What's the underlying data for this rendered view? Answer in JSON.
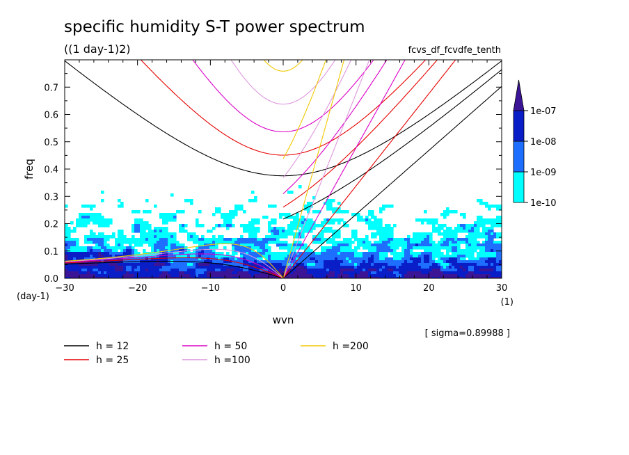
{
  "header": {
    "title": "specific humidity S-T power spectrum",
    "units": "((1 day-1)2)",
    "run_id": "fcvs_df_fcvdfe_tenth"
  },
  "axes": {
    "xlabel": "wvn",
    "ylabel": "freq",
    "x_unit": "(1)",
    "y_unit": "(day-1)"
  },
  "sigma_label": "[ sigma=0.89988 ]",
  "colorbar": {
    "levels": [
      "1e-10",
      "1e-09",
      "1e-08",
      "1e-07"
    ],
    "colors": [
      "#00ffff",
      "#1e6eff",
      "#0a1ec8",
      "#3c1496"
    ]
  },
  "legend": [
    {
      "label": "h = 12",
      "color": "#000000"
    },
    {
      "label": "h = 25",
      "color": "#e60000"
    },
    {
      "label": "h = 50",
      "color": "#dc00c8"
    },
    {
      "label": "h =100",
      "color": "#dc96dc"
    },
    {
      "label": "h =200",
      "color": "#f0c800"
    }
  ],
  "chart_data": {
    "type": "heatmap",
    "title": "specific humidity S-T power spectrum",
    "subtitle": "((1 day-1)2)",
    "xlabel": "wvn",
    "ylabel": "freq",
    "xlim": [
      -30,
      30
    ],
    "ylim": [
      0,
      0.8
    ],
    "x_ticks": [
      -30,
      -20,
      -10,
      0,
      10,
      20,
      30
    ],
    "y_ticks": [
      0.0,
      0.1,
      0.2,
      0.3,
      0.4,
      0.5,
      0.6,
      0.7
    ],
    "contour_levels": [
      "1e-10",
      "1e-09",
      "1e-08",
      "1e-07"
    ],
    "dispersion_curves": [
      {
        "name": "h = 12",
        "color": "#000000",
        "equivalent_depth": 12
      },
      {
        "name": "h = 25",
        "color": "#e60000",
        "equivalent_depth": 25
      },
      {
        "name": "h = 50",
        "color": "#dc00c8",
        "equivalent_depth": 50
      },
      {
        "name": "h =100",
        "color": "#dc96dc",
        "equivalent_depth": 100
      },
      {
        "name": "h =200",
        "color": "#f0c800",
        "equivalent_depth": 200
      }
    ]
  }
}
